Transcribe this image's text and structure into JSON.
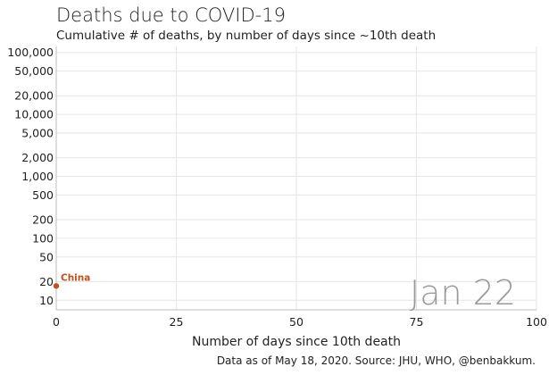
{
  "chart_data": {
    "type": "line",
    "title": "Deaths due to COVID-19",
    "subtitle": "Cumulative # of deaths, by number of days since ~10th death",
    "xlabel": "Number of days since 10th death",
    "ylabel": "",
    "xlim": [
      0,
      100
    ],
    "ylim": [
      7,
      125000
    ],
    "y_scale": "log",
    "x_ticks": [
      0,
      25,
      50,
      75,
      100
    ],
    "x_tick_labels": [
      "0",
      "25",
      "50",
      "75",
      "100"
    ],
    "y_ticks": [
      10,
      20,
      50,
      100,
      200,
      500,
      1000,
      2000,
      5000,
      10000,
      20000,
      50000,
      100000
    ],
    "y_tick_labels": [
      "10",
      "20",
      "50",
      "100",
      "200",
      "500",
      "1,000",
      "2,000",
      "5,000",
      "10,000",
      "20,000",
      "50,000",
      "100,000"
    ],
    "grid": true,
    "series": [
      {
        "name": "China",
        "color": "#c0501f",
        "x": [
          0
        ],
        "y": [
          17
        ]
      }
    ],
    "annotation_date": "Jan 22",
    "source_note": "Data as of May 18, 2020. Source: JHU, WHO, @benbakkum."
  }
}
